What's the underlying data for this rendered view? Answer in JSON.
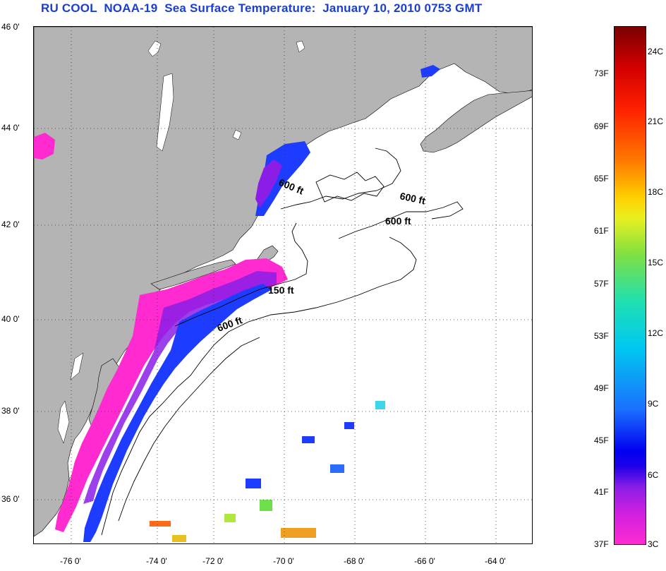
{
  "title": "RU COOL  NOAA-19  Sea Surface Temperature:  January 10, 2010 0753 GMT",
  "lat_labels": [
    "46 0'",
    "44 0'",
    "42 0'",
    "40 0'",
    "38 0'",
    "36 0'"
  ],
  "lon_labels": [
    "-76 0'",
    "-74 0'",
    "-72 0'",
    "-70 0'",
    "-68 0'",
    "-66 0'",
    "-64 0'"
  ],
  "contour_labels": [
    "600 ft",
    "600 ft",
    "600 ft",
    "150 ft",
    "600 ft"
  ],
  "colorbar": {
    "fahrenheit": [
      "73F",
      "69F",
      "65F",
      "61F",
      "57F",
      "53F",
      "49F",
      "45F",
      "41F",
      "37F"
    ],
    "celsius": [
      "24C",
      "21C",
      "18C",
      "15C",
      "12C",
      "9C",
      "6C",
      "3C"
    ]
  },
  "colors": {
    "land": "#b4b4b4",
    "ocean": "#ffffff",
    "title": "#1a3fd0",
    "cold_pink": "#ff2bd0",
    "purple": "#8a1ee6",
    "blue": "#1e3cff"
  },
  "map": {
    "lat_range": [
      35,
      46
    ],
    "lon_range": [
      -77,
      -63
    ],
    "grid": "dotted"
  }
}
